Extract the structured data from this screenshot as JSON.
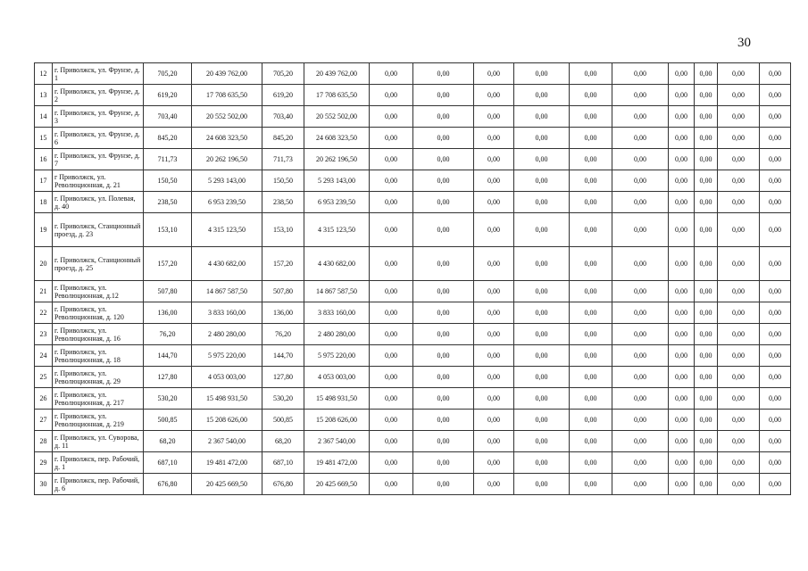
{
  "page_number": "30",
  "rows": [
    {
      "n": "12",
      "address": "г. Приволжск, ул. Фрунзе, д. 1",
      "area1": "705,20",
      "cost1": "20 439 762,00",
      "area2": "705,20",
      "cost2": "20 439 762,00"
    },
    {
      "n": "13",
      "address": "г. Приволжск, ул. Фрунзе, д. 2",
      "area1": "619,20",
      "cost1": "17 708 635,50",
      "area2": "619,20",
      "cost2": "17 708 635,50"
    },
    {
      "n": "14",
      "address": "г. Приволжск, ул. Фрунзе, д. 3",
      "area1": "703,40",
      "cost1": "20 552 502,00",
      "area2": "703,40",
      "cost2": "20 552 502,00"
    },
    {
      "n": "15",
      "address": "г. Приволжск, ул. Фрунзе, д. 6",
      "area1": "845,20",
      "cost1": "24 608 323,50",
      "area2": "845,20",
      "cost2": "24 608 323,50"
    },
    {
      "n": "16",
      "address": "г. Приволжск, ул. Фрунзе, д. 7",
      "area1": "711,73",
      "cost1": "20 262 196,50",
      "area2": "711,73",
      "cost2": "20 262 196,50"
    },
    {
      "n": "17",
      "address": "г Приволжск, ул. Революционная, д. 21",
      "area1": "150,50",
      "cost1": "5 293 143,00",
      "area2": "150,50",
      "cost2": "5 293 143,00"
    },
    {
      "n": "18",
      "address": "г. Приволжск, ул. Полевая, д. 40",
      "area1": "238,50",
      "cost1": "6 953 239,50",
      "area2": "238,50",
      "cost2": "6 953 239,50"
    },
    {
      "n": "19",
      "address": "г. Приволжск, Станционный проезд, д. 23",
      "area1": "153,10",
      "cost1": "4 315 123,50",
      "area2": "153,10",
      "cost2": "4 315 123,50"
    },
    {
      "n": "20",
      "address": "г. Приволжск, Станционный проезд, д. 25",
      "area1": "157,20",
      "cost1": "4 430 682,00",
      "area2": "157,20",
      "cost2": "4 430 682,00"
    },
    {
      "n": "21",
      "address": "г. Приволжск, ул. Революционная, д.12",
      "area1": "507,80",
      "cost1": "14 867 587,50",
      "area2": "507,80",
      "cost2": "14 867 587,50"
    },
    {
      "n": "22",
      "address": "г. Приволжск, ул. Революционная, д. 120",
      "area1": "136,00",
      "cost1": "3 833 160,00",
      "area2": "136,00",
      "cost2": "3 833 160,00"
    },
    {
      "n": "23",
      "address": "г. Приволжск, ул. Революционная, д. 16",
      "area1": "76,20",
      "cost1": "2 480 280,00",
      "area2": "76,20",
      "cost2": "2 480 280,00"
    },
    {
      "n": "24",
      "address": "г. Приволжск, ул. Революционная, д. 18",
      "area1": "144,70",
      "cost1": "5 975 220,00",
      "area2": "144,70",
      "cost2": "5 975 220,00"
    },
    {
      "n": "25",
      "address": "г. Приволжск, ул. Революционная, д. 29",
      "area1": "127,80",
      "cost1": "4 053 003,00",
      "area2": "127,80",
      "cost2": "4 053 003,00"
    },
    {
      "n": "26",
      "address": "г. Приволжск, ул. Революционная, д. 217",
      "area1": "530,20",
      "cost1": "15 498 931,50",
      "area2": "530,20",
      "cost2": "15 498 931,50"
    },
    {
      "n": "27",
      "address": "г. Приволжск, ул. Революционная, д. 219",
      "area1": "500,85",
      "cost1": "15 208 626,00",
      "area2": "500,85",
      "cost2": "15 208 626,00"
    },
    {
      "n": "28",
      "address": "г. Приволжск, ул. Суворова, д. 11",
      "area1": "68,20",
      "cost1": "2 367 540,00",
      "area2": "68,20",
      "cost2": "2 367 540,00"
    },
    {
      "n": "29",
      "address": "г. Приволжск, пер. Рабочий, д. 1",
      "area1": "687,10",
      "cost1": "19 481 472,00",
      "area2": "687,10",
      "cost2": "19 481 472,00"
    },
    {
      "n": "30",
      "address": "г. Приволжск, пер. Рабочий, д. 6",
      "area1": "676,80",
      "cost1": "20 425 669,50",
      "area2": "676,80",
      "cost2": "20 425 669,50"
    }
  ],
  "zero_value": "0,00",
  "zero_columns_count": 10
}
